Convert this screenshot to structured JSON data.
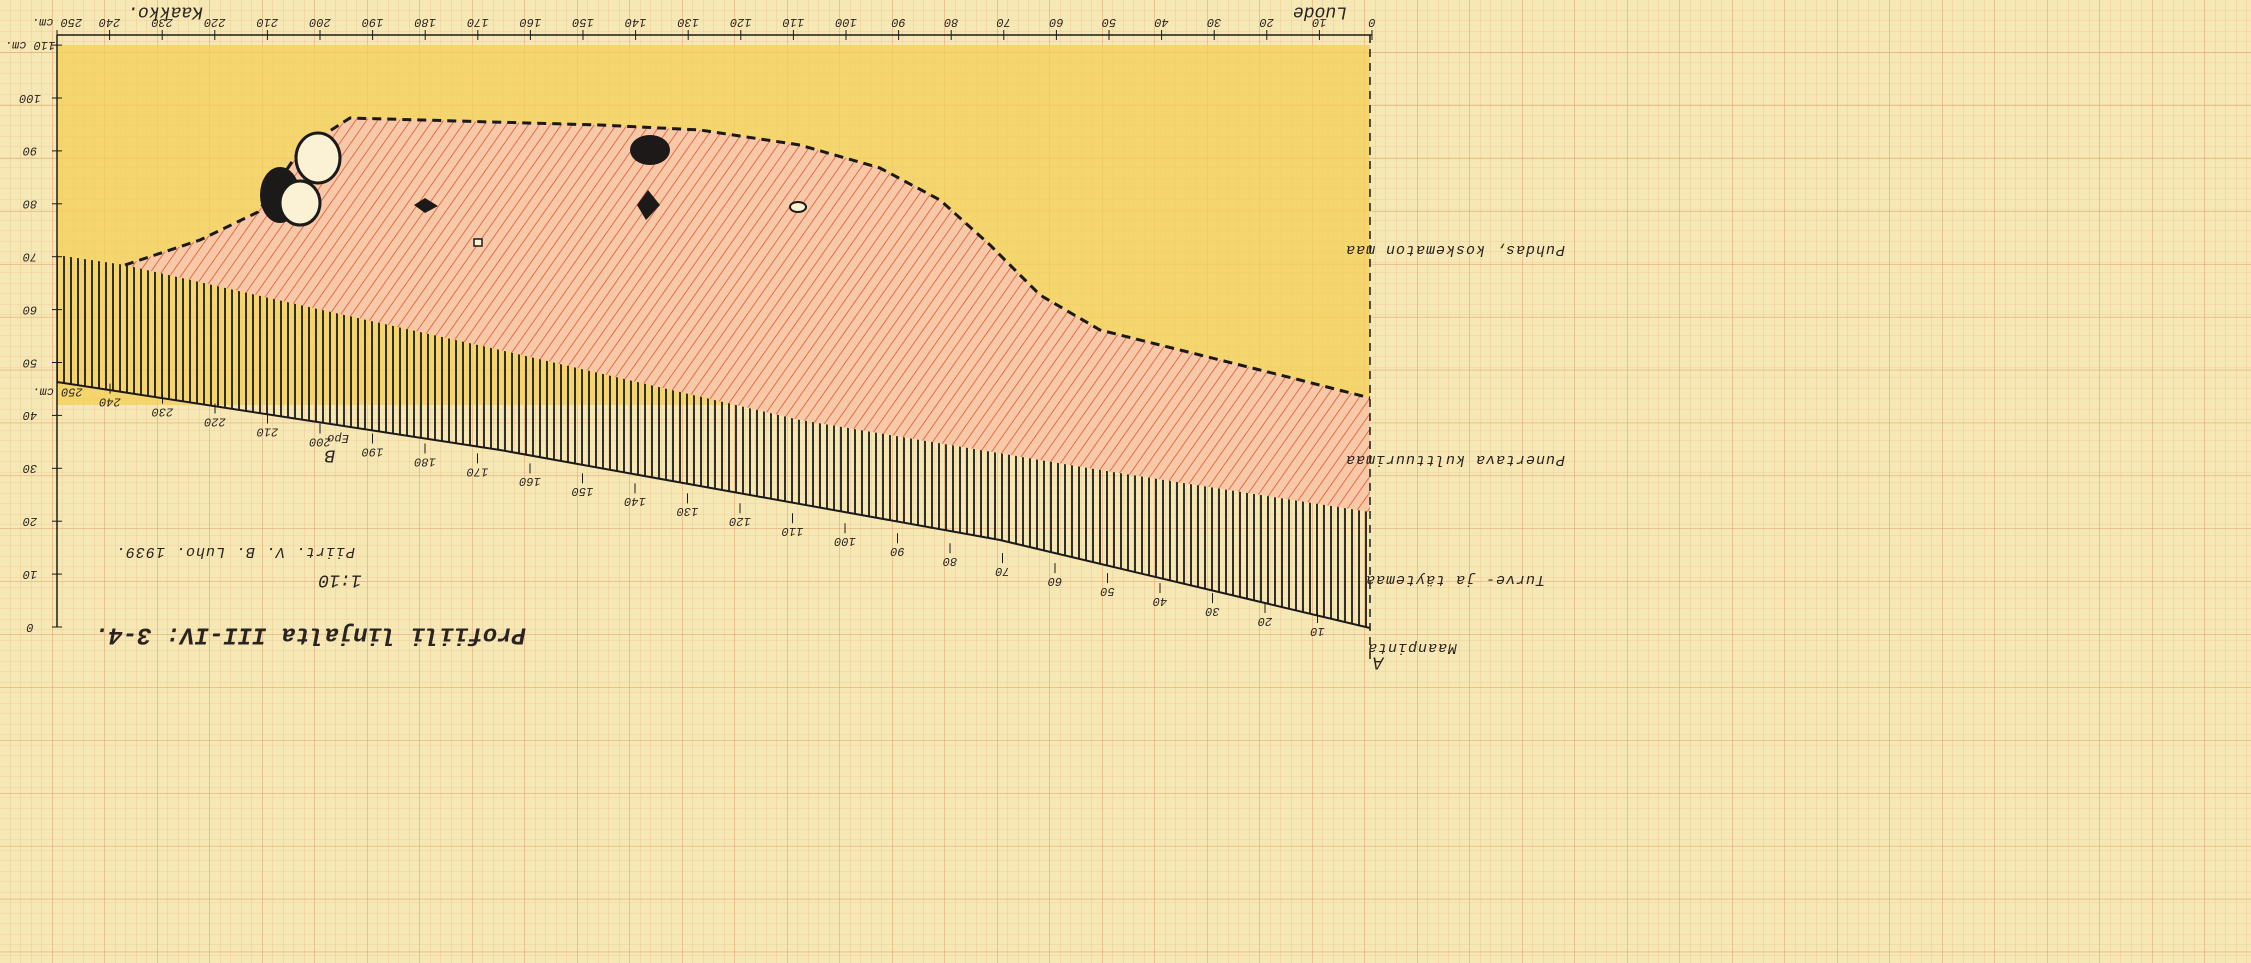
{
  "header": {
    "left": "Luode",
    "right": "Kaakko."
  },
  "top_scale": [
    "0",
    "10",
    "20",
    "30",
    "40",
    "50",
    "60",
    "70",
    "80",
    "90",
    "100",
    "110",
    "120",
    "130",
    "140",
    "150",
    "160",
    "170",
    "180",
    "190",
    "200",
    "210",
    "220",
    "230",
    "240",
    "250 cm."
  ],
  "depth_scale": [
    "0",
    "10",
    "20",
    "30",
    "40",
    "50",
    "60",
    "70",
    "80",
    "90",
    "100",
    "110 cm."
  ],
  "surface_scale": [
    "10",
    "20",
    "30",
    "40",
    "50",
    "60",
    "70",
    "80",
    "90",
    "100",
    "110",
    "120",
    "130",
    "140",
    "150",
    "160",
    "170",
    "180",
    "190",
    "200",
    "210",
    "220",
    "230",
    "240",
    "250 cm."
  ],
  "layers": [
    "Puhdas, koskematon maa",
    "Punertava kulttuurimaa",
    "Turve- ja täytemaa"
  ],
  "markers": {
    "surface": "Maanpinta",
    "a": "A",
    "b": "B",
    "epo": "Epo"
  },
  "caption": {
    "title": "Profiili linjalta III-IV: 3-4.",
    "scale": "1:10",
    "author": "Piirt. V. B. Luho. 1939."
  }
}
